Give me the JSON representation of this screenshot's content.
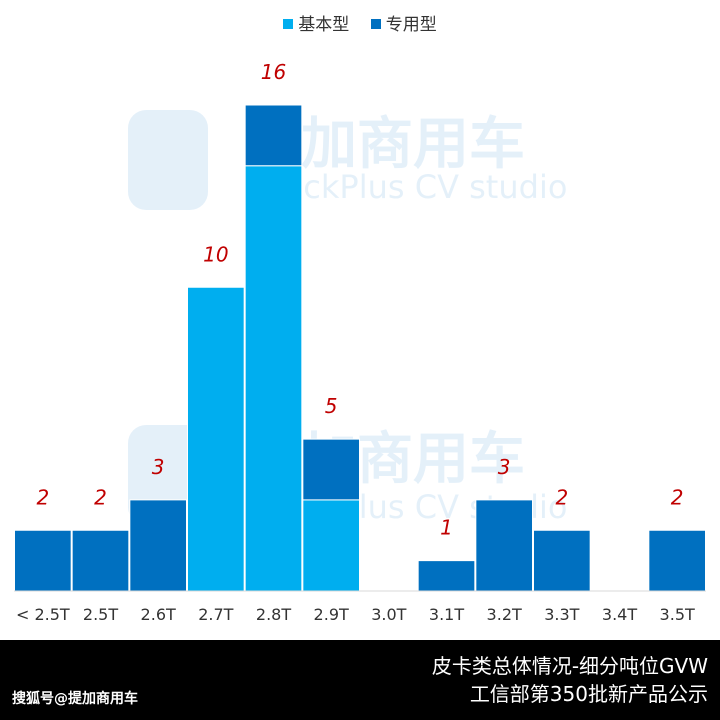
{
  "colors": {
    "basic": "#00aeef",
    "special": "#0070c0",
    "value_label": "#c00000"
  },
  "legend": [
    {
      "label": "基本型",
      "color": "#00aeef"
    },
    {
      "label": "专用型",
      "color": "#0070c0"
    }
  ],
  "chart_data": {
    "type": "bar",
    "stacked": true,
    "categories": [
      "< 2.5T",
      "2.5T",
      "2.6T",
      "2.7T",
      "2.8T",
      "2.9T",
      "3.0T",
      "3.1T",
      "3.2T",
      "3.3T",
      "3.4T",
      "3.5T"
    ],
    "series": [
      {
        "name": "基本型",
        "values": [
          0,
          0,
          0,
          10,
          14,
          3,
          0,
          0,
          0,
          0,
          0,
          0
        ]
      },
      {
        "name": "专用型",
        "values": [
          2,
          2,
          3,
          0,
          2,
          2,
          0,
          1,
          3,
          2,
          0,
          2
        ]
      }
    ],
    "totals": [
      "2",
      "2",
      "3",
      "10",
      "16",
      "5",
      "",
      "1",
      "3",
      "2",
      "",
      "2"
    ],
    "ylim": [
      0,
      16
    ],
    "legend_position": "top-center",
    "grid": false
  },
  "watermark": {
    "brand_cn": "提加商用车",
    "brand_en": "TruckPlus CV studio"
  },
  "footer": {
    "title_line1": "皮卡类总体情况-细分吨位GVW",
    "title_line2": "工信部第350批新产品公示",
    "brand": "搜狐号@提加商用车"
  }
}
